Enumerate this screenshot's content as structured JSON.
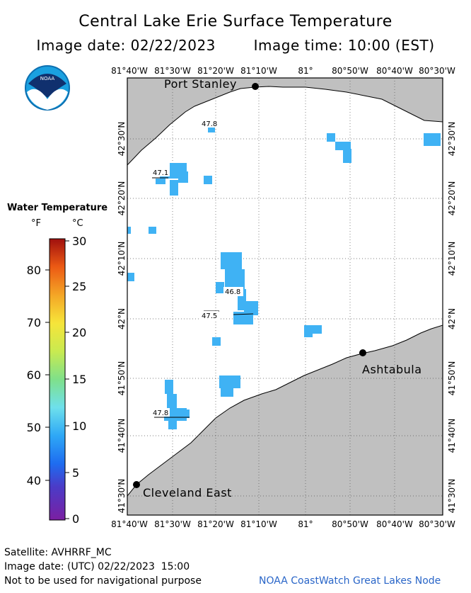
{
  "header": {
    "title": "Central Lake Erie Surface Temperature",
    "image_date": "Image date: 02/22/2023",
    "image_time": "Image time: 10:00 (EST)"
  },
  "logo": {
    "text": "NOAA"
  },
  "legend": {
    "title": "Water Temperature",
    "unit_f": "°F",
    "unit_c": "°C",
    "f_ticks": [
      "80",
      "70",
      "60",
      "50",
      "40"
    ],
    "c_ticks": [
      "30",
      "25",
      "20",
      "15",
      "10",
      "5",
      "0"
    ]
  },
  "map": {
    "lon_labels": [
      "81°40'W",
      "81°30'W",
      "81°20'W",
      "81°10'W",
      "81°",
      "80°50'W",
      "80°40'W",
      "80°30'W"
    ],
    "lat_labels": [
      "42°30'N",
      "42°20'N",
      "42°10'N",
      "42°N",
      "41°50'N",
      "41°40'N",
      "41°30'N"
    ],
    "cities": [
      {
        "name": "Port Stanley"
      },
      {
        "name": "Ashtabula"
      },
      {
        "name": "Cleveland East"
      }
    ],
    "temp_labels": [
      "47.8",
      "47.1",
      "46.8",
      "47.5",
      "47.8"
    ],
    "colors": {
      "land": "#c0c0c0",
      "water": "#ffffff",
      "temp_pixels": "#3fb2f4"
    }
  },
  "footer": {
    "satellite": "Satellite: AVHRRF_MC",
    "utc_date": "Image date: (UTC) 02/22/2023  15:00",
    "disclaimer": "Not to be used for navigational purpose",
    "credit": "NOAA CoastWatch Great Lakes Node"
  }
}
